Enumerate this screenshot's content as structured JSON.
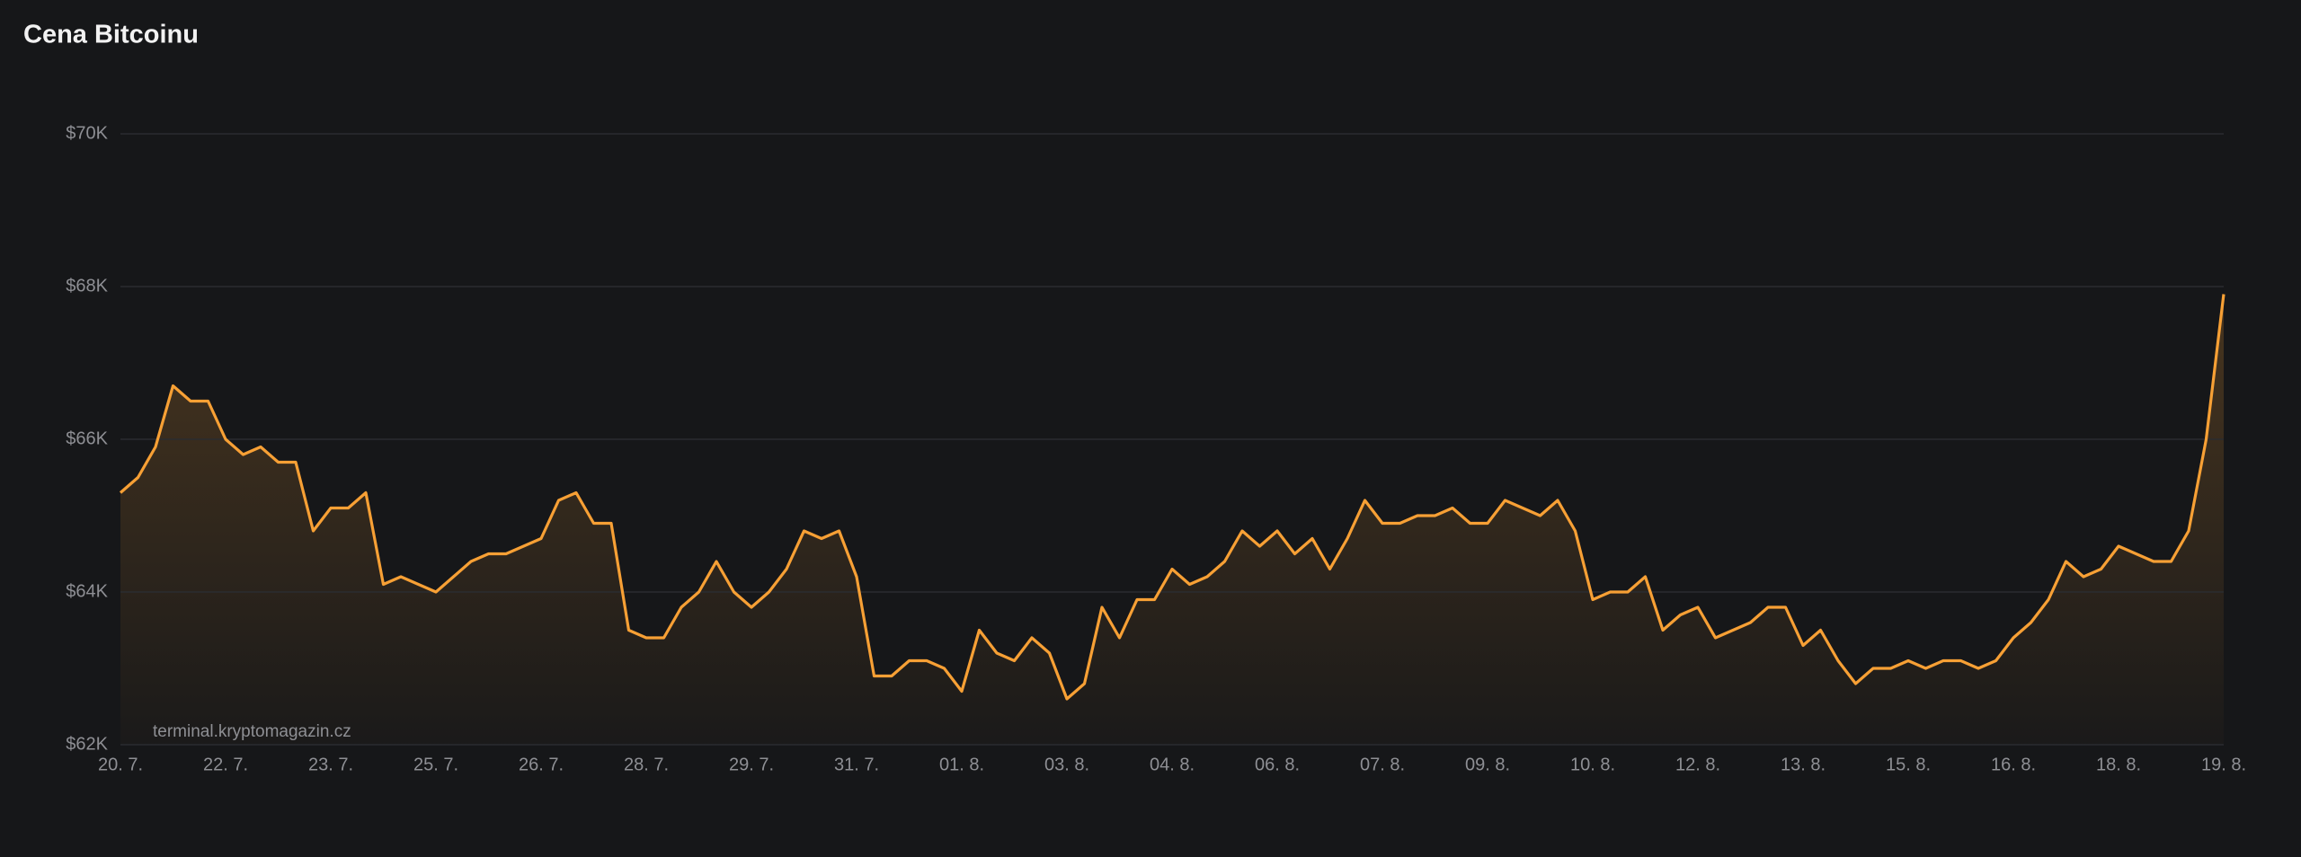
{
  "chart_data": {
    "type": "line",
    "title": "Cena Bitcoinu",
    "annotation": "terminal.kryptomagazin.cz",
    "color": "#f7a035",
    "grid": true,
    "ylim": [
      62000,
      70000
    ],
    "yticks": [
      {
        "value": 62000,
        "label": "$62K"
      },
      {
        "value": 64000,
        "label": "$64K"
      },
      {
        "value": 66000,
        "label": "$66K"
      },
      {
        "value": 68000,
        "label": "$68K"
      },
      {
        "value": 70000,
        "label": "$70K"
      }
    ],
    "xlim": [
      0,
      120
    ],
    "xticks": [
      {
        "value": 0,
        "label": "20. 7."
      },
      {
        "value": 6,
        "label": "22. 7."
      },
      {
        "value": 12,
        "label": "23. 7."
      },
      {
        "value": 18,
        "label": "25. 7."
      },
      {
        "value": 24,
        "label": "26. 7."
      },
      {
        "value": 30,
        "label": "28. 7."
      },
      {
        "value": 36,
        "label": "29. 7."
      },
      {
        "value": 42,
        "label": "31. 7."
      },
      {
        "value": 48,
        "label": "01. 8."
      },
      {
        "value": 54,
        "label": "03. 8."
      },
      {
        "value": 60,
        "label": "04. 8."
      },
      {
        "value": 66,
        "label": "06. 8."
      },
      {
        "value": 72,
        "label": "07. 8."
      },
      {
        "value": 78,
        "label": "09. 8."
      },
      {
        "value": 84,
        "label": "10. 8."
      },
      {
        "value": 90,
        "label": "12. 8."
      },
      {
        "value": 96,
        "label": "13. 8."
      },
      {
        "value": 102,
        "label": "15. 8."
      },
      {
        "value": 108,
        "label": "16. 8."
      },
      {
        "value": 114,
        "label": "18. 8."
      },
      {
        "value": 120,
        "label": "19. 8."
      }
    ],
    "values": [
      65300,
      65500,
      65900,
      66700,
      66500,
      66500,
      66000,
      65800,
      65900,
      65700,
      65700,
      64800,
      65100,
      65100,
      65300,
      64100,
      64200,
      64100,
      64000,
      64200,
      64400,
      64500,
      64500,
      64600,
      64700,
      65200,
      65300,
      64900,
      64900,
      63500,
      63400,
      63400,
      63800,
      64000,
      64400,
      64000,
      63800,
      64000,
      64300,
      64800,
      64700,
      64800,
      64200,
      62900,
      62900,
      63100,
      63100,
      63000,
      62700,
      63500,
      63200,
      63100,
      63400,
      63200,
      62600,
      62800,
      63800,
      63400,
      63900,
      63900,
      64300,
      64100,
      64200,
      64400,
      64800,
      64600,
      64800,
      64500,
      64700,
      64300,
      64700,
      65200,
      64900,
      64900,
      65000,
      65000,
      65100,
      64900,
      64900,
      65200,
      65100,
      65000,
      65200,
      64800,
      63900,
      64000,
      64000,
      64200,
      63500,
      63700,
      63800,
      63400,
      63500,
      63600,
      63800,
      63800,
      63300,
      63500,
      63100,
      62800,
      63000,
      63000,
      63100,
      63000,
      63100,
      63100,
      63000,
      63100,
      63400,
      63600,
      63900,
      64400,
      64200,
      64300,
      64600,
      64500,
      64400,
      64400,
      64800,
      66000,
      67900
    ]
  }
}
